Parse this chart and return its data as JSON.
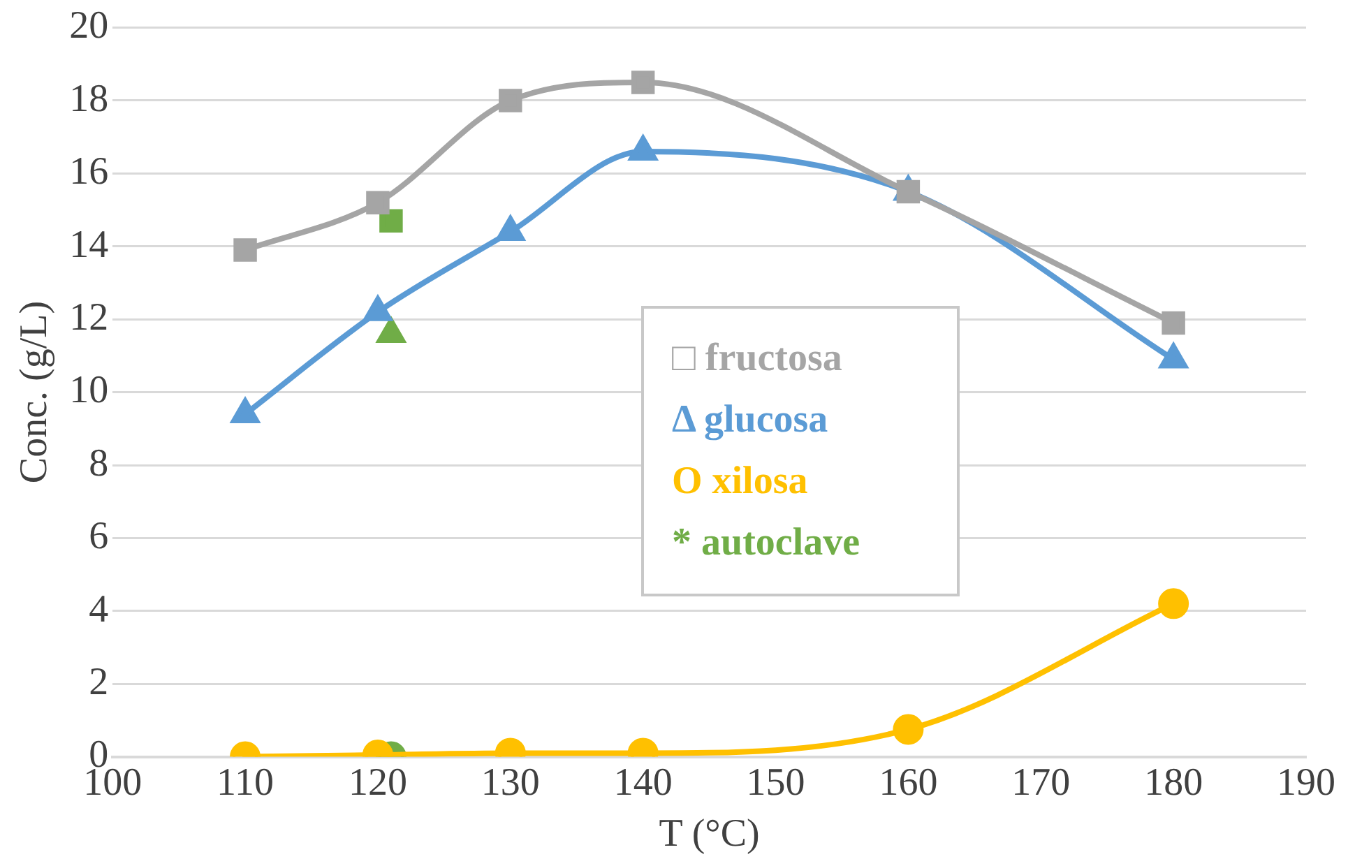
{
  "chart_data": {
    "type": "line",
    "xlabel": "T (°C)",
    "ylabel": "Conc. (g/L)",
    "xlim": [
      100,
      190
    ],
    "xticks": [
      100,
      110,
      120,
      130,
      140,
      150,
      160,
      170,
      180,
      190
    ],
    "ylim": [
      0,
      20
    ],
    "yticks": [
      0,
      2,
      4,
      6,
      8,
      10,
      12,
      14,
      16,
      18,
      20
    ],
    "grid": "y",
    "legend": "center",
    "series": [
      {
        "name": "□ fructosa",
        "color": "#a5a5a5",
        "marker": "square",
        "x": [
          110,
          120,
          130,
          140,
          160,
          180
        ],
        "values": [
          13.9,
          15.2,
          18.0,
          18.5,
          15.5,
          11.9
        ]
      },
      {
        "name": "Δ glucosa",
        "color": "#5b9bd5",
        "marker": "triangle",
        "x": [
          110,
          120,
          130,
          140,
          160,
          180
        ],
        "values": [
          9.4,
          12.2,
          14.4,
          16.6,
          15.5,
          10.9
        ]
      },
      {
        "name": "O xilosa",
        "color": "#ffc000",
        "marker": "circle",
        "x": [
          110,
          120,
          130,
          140,
          160,
          180
        ],
        "values": [
          0.0,
          0.05,
          0.1,
          0.1,
          0.75,
          4.2
        ]
      },
      {
        "name": "* autoclave",
        "type": "scatter",
        "color": "#70ad47",
        "marker": [
          "square",
          "triangle",
          "circle"
        ],
        "x": [
          121,
          121,
          121
        ],
        "values": [
          14.7,
          11.6,
          0.0
        ]
      }
    ]
  }
}
